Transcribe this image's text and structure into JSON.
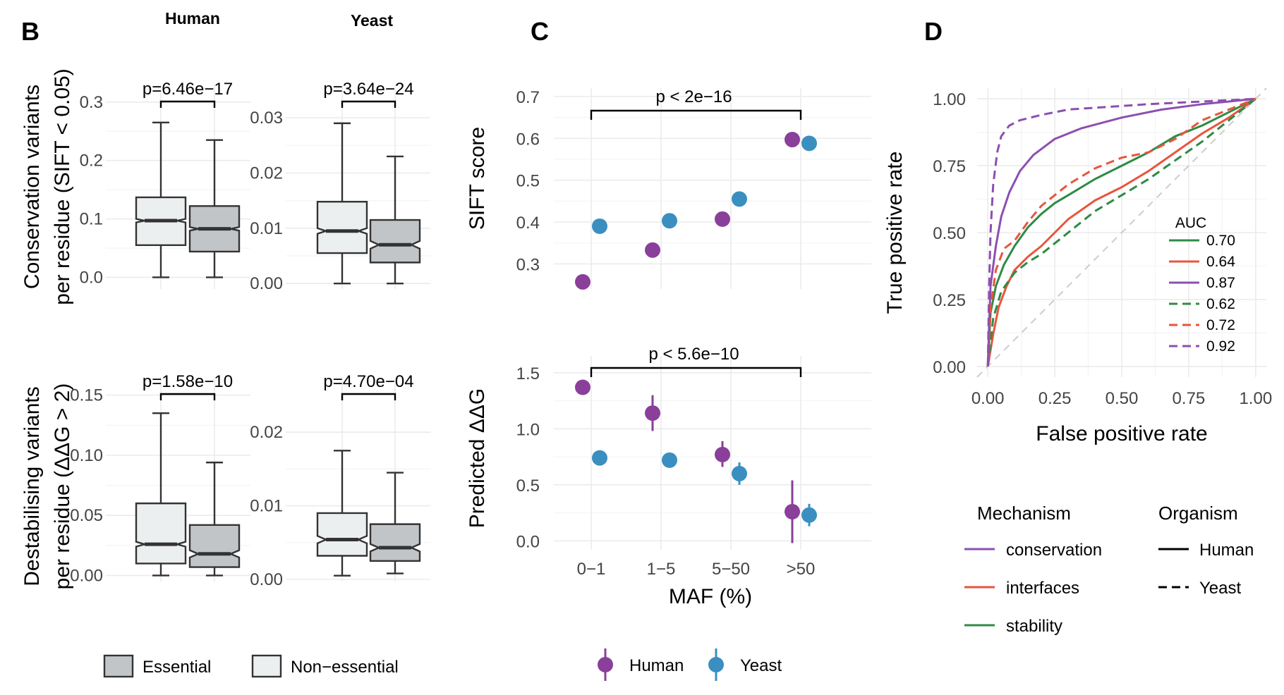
{
  "colors": {
    "human": "#8a3f9a",
    "yeast": "#3a8fc0",
    "conservation": "#8c4fb0",
    "interfaces": "#e8553d",
    "stability": "#2e8b45",
    "essential_fill": "#c2c5c8",
    "nonessential_fill": "#eceff0"
  },
  "panel_letters": {
    "b": "B",
    "c": "C",
    "d": "D"
  },
  "panel_b": {
    "strips": {
      "human": "Human",
      "yeast": "Yeast"
    },
    "legend": {
      "essential": "Essential",
      "nonessential": "Non−essential"
    }
  },
  "chart_data": [
    {
      "type": "box",
      "panel": "B",
      "facet": "Human",
      "ylabel": "Conservation variants\nper residue (SIFT < 0.05)",
      "ylim": [
        -0.02,
        0.33
      ],
      "yticks": [
        0.0,
        0.1,
        0.2,
        0.3
      ],
      "ytick_labels": [
        "0.0",
        "0.1",
        "0.2",
        "0.3"
      ],
      "pvalue": "p=6.46e−17",
      "boxes": [
        {
          "group": "Non−essential",
          "min": 0.0,
          "q1": 0.055,
          "median": 0.097,
          "q3": 0.137,
          "max": 0.265,
          "notch": 0.003
        },
        {
          "group": "Essential",
          "min": 0.0,
          "q1": 0.044,
          "median": 0.083,
          "q3": 0.122,
          "max": 0.235,
          "notch": 0.003
        }
      ]
    },
    {
      "type": "box",
      "panel": "B",
      "facet": "Yeast",
      "ylim": [
        -0.001,
        0.036
      ],
      "yticks": [
        0.0,
        0.01,
        0.02,
        0.03
      ],
      "ytick_labels": [
        "0.00",
        "0.01",
        "0.02",
        "0.03"
      ],
      "pvalue": "p=3.64e−24",
      "boxes": [
        {
          "group": "Non−essential",
          "min": 0.0,
          "q1": 0.0055,
          "median": 0.0095,
          "q3": 0.0148,
          "max": 0.029,
          "notch": 0.0005
        },
        {
          "group": "Essential",
          "min": 0.0,
          "q1": 0.0038,
          "median": 0.007,
          "q3": 0.0115,
          "max": 0.023,
          "notch": 0.0007
        }
      ]
    },
    {
      "type": "box",
      "panel": "B",
      "facet": "Human",
      "ylabel": "Destabilising variants\nper residue (ΔΔG > 2)",
      "ylim": [
        -0.005,
        0.165
      ],
      "yticks": [
        0.0,
        0.05,
        0.1,
        0.15
      ],
      "ytick_labels": [
        "0.00",
        "0.05",
        "0.10",
        "0.15"
      ],
      "pvalue": "p=1.58e−10",
      "boxes": [
        {
          "group": "Non−essential",
          "min": 0.0,
          "q1": 0.01,
          "median": 0.026,
          "q3": 0.06,
          "max": 0.135,
          "notch": 0.002
        },
        {
          "group": "Essential",
          "min": 0.0,
          "q1": 0.007,
          "median": 0.018,
          "q3": 0.042,
          "max": 0.094,
          "notch": 0.003
        }
      ]
    },
    {
      "type": "box",
      "panel": "B",
      "facet": "Yeast",
      "ylim": [
        -0.0003,
        0.0275
      ],
      "yticks": [
        0.0,
        0.01,
        0.02
      ],
      "ytick_labels": [
        "0.00",
        "0.01",
        "0.02"
      ],
      "pvalue": "p=4.70e−04",
      "boxes": [
        {
          "group": "Non−essential",
          "min": 0.0005,
          "q1": 0.0032,
          "median": 0.0054,
          "q3": 0.009,
          "max": 0.0175,
          "notch": 0.0005
        },
        {
          "group": "Essential",
          "min": 0.0008,
          "q1": 0.0025,
          "median": 0.0043,
          "q3": 0.0075,
          "max": 0.0145,
          "notch": 0.0005
        }
      ]
    },
    {
      "type": "scatter",
      "panel": "C",
      "ylabel": "SIFT score",
      "categories": [
        "0−1",
        "1−5",
        "5−50",
        ">50"
      ],
      "ylim": [
        0.24,
        0.72
      ],
      "yticks": [
        0.3,
        0.4,
        0.5,
        0.6,
        0.7
      ],
      "ytick_labels": [
        "0.3",
        "0.4",
        "0.5",
        "0.6",
        "0.7"
      ],
      "pvalue": "p < 2e−16",
      "series": [
        {
          "name": "Human",
          "values": [
            0.257,
            0.333,
            0.407,
            0.597
          ]
        },
        {
          "name": "Yeast",
          "values": [
            0.39,
            0.403,
            0.455,
            0.588
          ]
        }
      ]
    },
    {
      "type": "scatter",
      "panel": "C",
      "ylabel": "Predicted ΔΔG",
      "xlabel": "MAF (%)",
      "categories": [
        "0−1",
        "1−5",
        "5−50",
        ">50"
      ],
      "xtick_labels": [
        "0−1",
        "1−5",
        "5−50",
        ">50"
      ],
      "ylim": [
        -0.08,
        1.65
      ],
      "yticks": [
        0.0,
        0.5,
        1.0,
        1.5
      ],
      "ytick_labels": [
        "0.0",
        "0.5",
        "1.0",
        "1.5"
      ],
      "pvalue": "p < 5.6e−10",
      "series": [
        {
          "name": "Human",
          "values": [
            1.37,
            1.14,
            0.77,
            0.26
          ],
          "err_low": [
            1.33,
            0.98,
            0.66,
            -0.02
          ],
          "err_high": [
            1.41,
            1.3,
            0.89,
            0.54
          ]
        },
        {
          "name": "Yeast",
          "values": [
            0.74,
            0.72,
            0.6,
            0.23
          ],
          "err_low": [
            0.71,
            0.69,
            0.5,
            0.13
          ],
          "err_high": [
            0.77,
            0.75,
            0.7,
            0.33
          ]
        }
      ],
      "legend": [
        "Human",
        "Yeast"
      ]
    },
    {
      "type": "line",
      "panel": "D",
      "xlabel": "False positive rate",
      "ylabel": "True positive rate",
      "xlim": [
        -0.04,
        1.04
      ],
      "ylim": [
        -0.04,
        1.04
      ],
      "ticks": [
        0.0,
        0.25,
        0.5,
        0.75,
        1.0
      ],
      "tick_labels": [
        "0.00",
        "0.25",
        "0.50",
        "0.75",
        "1.00"
      ],
      "legend_title": "AUC",
      "series": [
        {
          "auc": "0.70",
          "mechanism": "stability",
          "organism": "Human",
          "x": [
            0,
            0.01,
            0.03,
            0.06,
            0.1,
            0.15,
            0.2,
            0.25,
            0.3,
            0.4,
            0.5,
            0.6,
            0.7,
            0.8,
            0.9,
            1.0
          ],
          "y": [
            0,
            0.2,
            0.3,
            0.38,
            0.45,
            0.52,
            0.57,
            0.61,
            0.64,
            0.7,
            0.75,
            0.8,
            0.86,
            0.9,
            0.95,
            1.0
          ]
        },
        {
          "auc": "0.64",
          "mechanism": "interfaces",
          "organism": "Human",
          "x": [
            0,
            0.02,
            0.04,
            0.07,
            0.1,
            0.15,
            0.2,
            0.25,
            0.3,
            0.4,
            0.5,
            0.6,
            0.7,
            0.8,
            0.9,
            1.0
          ],
          "y": [
            0,
            0.12,
            0.22,
            0.3,
            0.36,
            0.41,
            0.45,
            0.5,
            0.55,
            0.62,
            0.67,
            0.73,
            0.8,
            0.87,
            0.93,
            1.0
          ]
        },
        {
          "auc": "0.87",
          "mechanism": "conservation",
          "organism": "Human",
          "x": [
            0,
            0.01,
            0.03,
            0.05,
            0.08,
            0.12,
            0.17,
            0.25,
            0.35,
            0.5,
            0.65,
            0.8,
            0.9,
            1.0
          ],
          "y": [
            0,
            0.3,
            0.45,
            0.56,
            0.65,
            0.73,
            0.79,
            0.85,
            0.89,
            0.93,
            0.96,
            0.98,
            0.99,
            1.0
          ]
        },
        {
          "auc": "0.62",
          "mechanism": "stability",
          "organism": "Yeast",
          "x": [
            0,
            0.02,
            0.05,
            0.1,
            0.15,
            0.2,
            0.3,
            0.4,
            0.5,
            0.6,
            0.7,
            0.8,
            0.9,
            1.0
          ],
          "y": [
            0,
            0.18,
            0.28,
            0.35,
            0.39,
            0.42,
            0.5,
            0.58,
            0.64,
            0.7,
            0.77,
            0.84,
            0.92,
            1.0
          ]
        },
        {
          "auc": "0.72",
          "mechanism": "interfaces",
          "organism": "Yeast",
          "x": [
            0,
            0.01,
            0.03,
            0.06,
            0.1,
            0.15,
            0.2,
            0.3,
            0.4,
            0.5,
            0.6,
            0.7,
            0.8,
            0.9,
            1.0
          ],
          "y": [
            0,
            0.22,
            0.36,
            0.44,
            0.47,
            0.54,
            0.6,
            0.68,
            0.74,
            0.78,
            0.8,
            0.85,
            0.92,
            0.96,
            1.0
          ]
        },
        {
          "auc": "0.92",
          "mechanism": "conservation",
          "organism": "Yeast",
          "x": [
            0,
            0.005,
            0.01,
            0.02,
            0.035,
            0.05,
            0.08,
            0.12,
            0.2,
            0.3,
            0.45,
            0.6,
            0.8,
            1.0
          ],
          "y": [
            0,
            0.3,
            0.5,
            0.68,
            0.8,
            0.86,
            0.9,
            0.92,
            0.94,
            0.96,
            0.97,
            0.98,
            0.99,
            1.0
          ]
        }
      ]
    }
  ],
  "panel_d_legend": {
    "mechanism_title": "Mechanism",
    "organism_title": "Organism",
    "mechanisms": [
      "conservation",
      "interfaces",
      "stability"
    ],
    "organisms": [
      "Human",
      "Yeast"
    ]
  }
}
